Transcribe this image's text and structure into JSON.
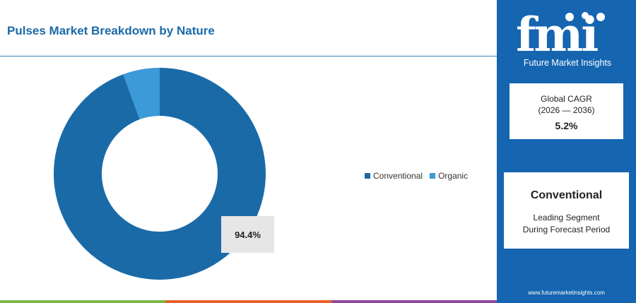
{
  "title": "Pulses Market Breakdown by Nature",
  "chart_data": {
    "type": "pie",
    "title": "Pulses Market Breakdown by Nature",
    "categories": [
      "Conventional",
      "Organic"
    ],
    "values": [
      94.4,
      5.6
    ],
    "colors": [
      "#1a6aa8",
      "#3c9ad8"
    ],
    "data_label": "94.4%",
    "legend": "right",
    "donut": true
  },
  "legend": {
    "items": [
      {
        "label": "Conventional",
        "color": "#1a6aa8"
      },
      {
        "label": "Organic",
        "color": "#3c9ad8"
      }
    ]
  },
  "brand": {
    "logo_text": "fmi",
    "name": "Future Market Insights",
    "website": "www.futuremarketinsights.com",
    "panel_color": "#1565b0"
  },
  "cagr": {
    "label": "Global CAGR",
    "period": "(2026 — 2036)",
    "value": "5.2%"
  },
  "segment": {
    "name": "Conventional",
    "desc_line1": "Leading Segment",
    "desc_line2": "During Forecast Period"
  },
  "strip_colors": [
    "#7ab648",
    "#e8632a",
    "#8e4a9e"
  ]
}
